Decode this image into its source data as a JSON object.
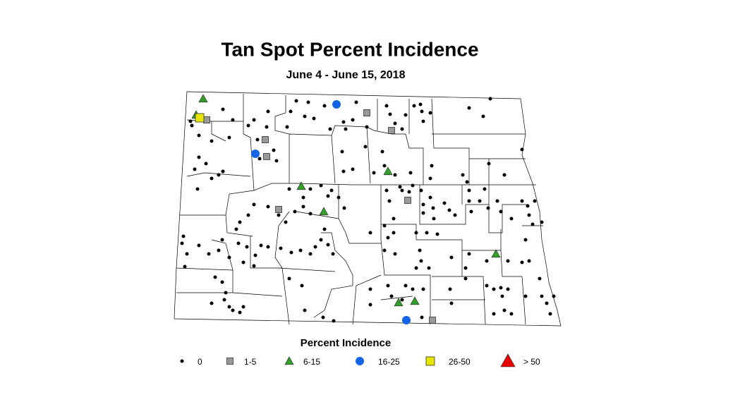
{
  "header": {
    "title": "Tan Spot Percent Incidence",
    "subtitle": "June 4 - June 15, 2018"
  },
  "legend": {
    "title": "Percent Incidence",
    "items": [
      {
        "label": "0",
        "color": "#000000"
      },
      {
        "label": "1-5",
        "color": "#999999"
      },
      {
        "label": "6-15",
        "color": "#33a02c"
      },
      {
        "label": "16-25",
        "color": "#1464e6"
      },
      {
        "label": "26-50",
        "color": "#e6e600"
      },
      {
        "label": "> 50",
        "color": "#e60000"
      }
    ]
  }
}
